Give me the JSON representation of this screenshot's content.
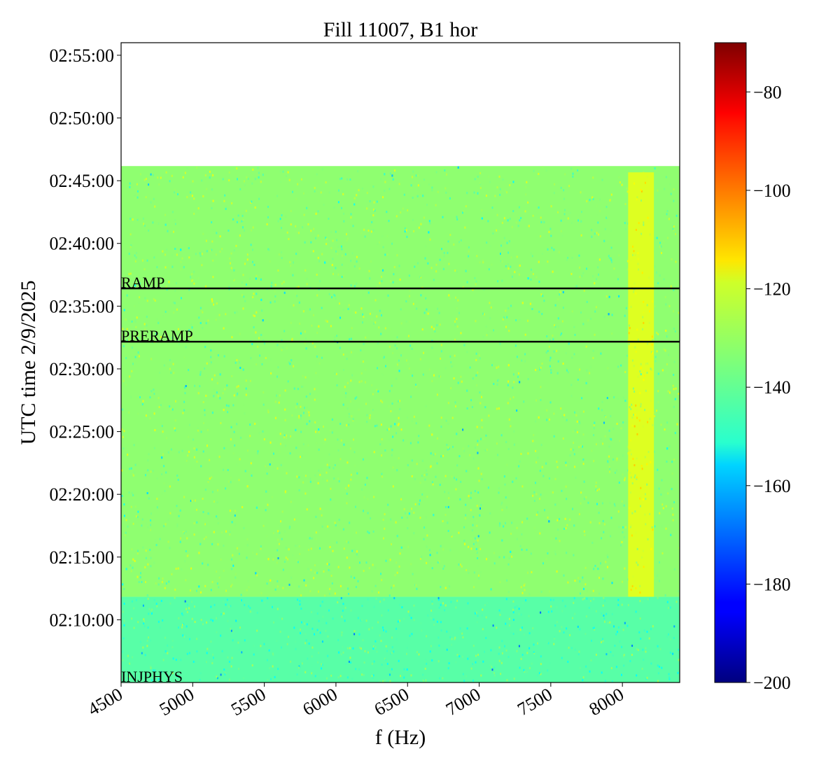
{
  "chart_data": {
    "type": "heatmap",
    "title": "Fill 11007, B1 hor",
    "xlabel": "f (Hz)",
    "ylabel": "UTC time 2/9/2025",
    "xlim": [
      4500,
      8400
    ],
    "ylim": [
      "02:05:00",
      "02:56:00"
    ],
    "x_ticks": [
      4500,
      5000,
      5500,
      6000,
      6500,
      7000,
      7500,
      8000
    ],
    "y_ticks": [
      "02:10:00",
      "02:15:00",
      "02:20:00",
      "02:25:00",
      "02:30:00",
      "02:35:00",
      "02:40:00",
      "02:45:00",
      "02:50:00",
      "02:55:00"
    ],
    "data_extent": {
      "start": "02:05:00",
      "end": "02:46:10"
    },
    "colormap": "jet",
    "colorbar": {
      "range": [
        -200,
        -70
      ],
      "ticks": [
        -200,
        -180,
        -160,
        -140,
        -120,
        -100,
        -80
      ]
    },
    "regions": [
      {
        "time_range": [
          "02:05:00",
          "02:11:50"
        ],
        "f_range": [
          4500,
          8400
        ],
        "level": -140
      },
      {
        "time_range": [
          "02:11:50",
          "02:46:10"
        ],
        "f_range": [
          4500,
          8400
        ],
        "level": -133
      },
      {
        "time_range": [
          "02:11:50",
          "02:45:40"
        ],
        "f_range": [
          8040,
          8220
        ],
        "level": -123
      }
    ],
    "events": [
      {
        "label": "INJPHYS",
        "time": "02:05:00",
        "line": false
      },
      {
        "label": "PRERAMP",
        "time": "02:32:10",
        "line": true
      },
      {
        "label": "RAMP",
        "time": "02:36:25",
        "line": true
      }
    ]
  }
}
